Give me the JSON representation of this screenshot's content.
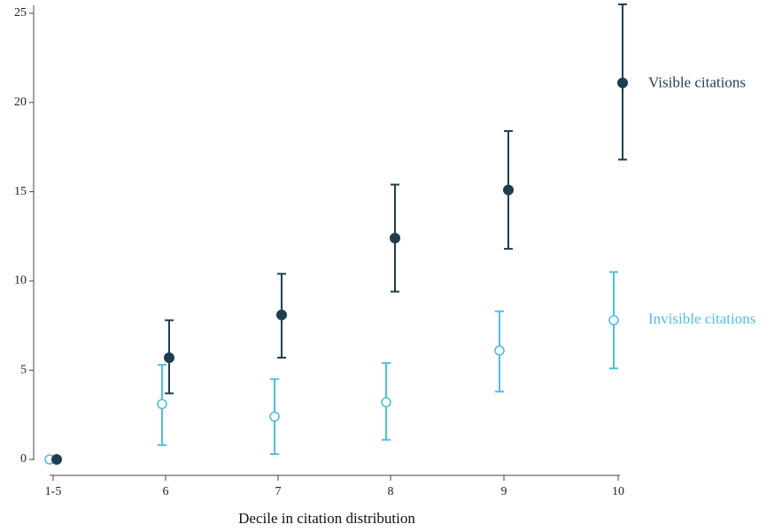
{
  "chart_data": {
    "type": "scatter",
    "title": "",
    "xlabel": "Decile in citation distribution",
    "ylabel": "",
    "categories": [
      "1-5",
      "6",
      "7",
      "8",
      "9",
      "10"
    ],
    "ylim": [
      0,
      25
    ],
    "yticks": [
      0,
      5,
      10,
      15,
      20,
      25
    ],
    "grid": false,
    "legend": "direct-labels-right",
    "series": [
      {
        "name": "Visible citations",
        "color": "#1d3f4f",
        "marker": "filled-circle",
        "values": [
          0.0,
          5.7,
          8.1,
          12.4,
          15.1,
          21.1
        ],
        "lower": [
          0.0,
          3.7,
          5.7,
          9.4,
          11.8,
          16.8
        ],
        "upper": [
          0.0,
          7.8,
          10.4,
          15.4,
          18.4,
          25.5
        ]
      },
      {
        "name": "Invisible citations",
        "color": "#4fbfe0",
        "marker": "hollow-circle",
        "values": [
          0.0,
          3.1,
          2.4,
          3.2,
          6.1,
          7.8
        ],
        "lower": [
          0.0,
          0.8,
          0.3,
          1.1,
          3.8,
          5.1
        ],
        "upper": [
          0.0,
          5.3,
          4.5,
          5.4,
          8.3,
          10.5
        ]
      }
    ]
  }
}
